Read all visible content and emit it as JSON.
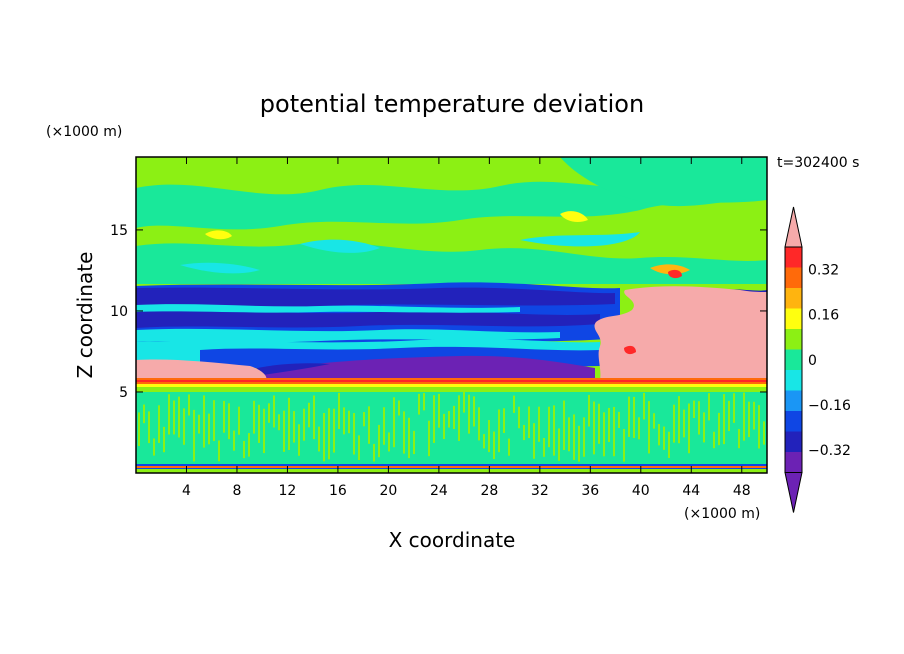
{
  "chart_data": {
    "type": "heatmap",
    "title": "potential temperature deviation",
    "time_label": "t=302400 s",
    "xlabel": "X coordinate",
    "ylabel": "Z coordinate",
    "x_unit": "(×1000 m)",
    "y_unit": "(×1000 m)",
    "xlim": [
      0,
      50
    ],
    "ylim": [
      0,
      19.5
    ],
    "x_ticks": [
      4,
      8,
      12,
      16,
      20,
      24,
      28,
      32,
      36,
      40,
      44,
      48
    ],
    "y_ticks": [
      5,
      10,
      15
    ],
    "colorbar": {
      "tick_labels": [
        "0.32",
        "0.16",
        "0",
        "−0.16",
        "−0.32"
      ],
      "tick_values": [
        0.32,
        0.16,
        0,
        -0.16,
        -0.32
      ],
      "levels": [
        -0.4,
        -0.32,
        -0.24,
        -0.16,
        -0.08,
        0,
        0.08,
        0.16,
        0.24,
        0.32,
        0.4
      ],
      "colors": [
        "#6c22b4",
        "#2222bb",
        "#0f46e4",
        "#1a96f5",
        "#18e6e6",
        "#19e89a",
        "#8cf014",
        "#ffff0f",
        "#ffb40f",
        "#ff6a0a",
        "#ff2828"
      ],
      "over_color": "#f6aaaa",
      "under_color": "#6c22b4",
      "extend": "both"
    },
    "regions": [
      {
        "x": [
          0,
          50
        ],
        "z": [
          0.4,
          4.5
        ],
        "level": "0 to 0.08",
        "color": "#19e89a"
      },
      {
        "x": [
          0,
          50
        ],
        "z": [
          5.7,
          6.1
        ],
        "level": "0.24 to 0.4",
        "color": "#ff6a0a"
      },
      {
        "x": [
          0,
          10
        ],
        "z": [
          6.1,
          7.2
        ],
        "level": "> 0.4",
        "color": "#f6aaaa"
      },
      {
        "x": [
          35,
          50
        ],
        "z": [
          6.1,
          11.8
        ],
        "level": "> 0.4",
        "color": "#f6aaaa"
      },
      {
        "x": [
          0,
          38
        ],
        "z": [
          9.8,
          11.6
        ],
        "level": "-0.4 to -0.24",
        "color": "#2222bb"
      },
      {
        "x": [
          10,
          36
        ],
        "z": [
          5.2,
          7.2
        ],
        "level": "< -0.4",
        "color": "#6c22b4"
      },
      {
        "x": [
          0,
          50
        ],
        "z": [
          11.8,
          19.5
        ],
        "level": "0.08 to 0.16",
        "color": "#8cf014"
      }
    ]
  }
}
